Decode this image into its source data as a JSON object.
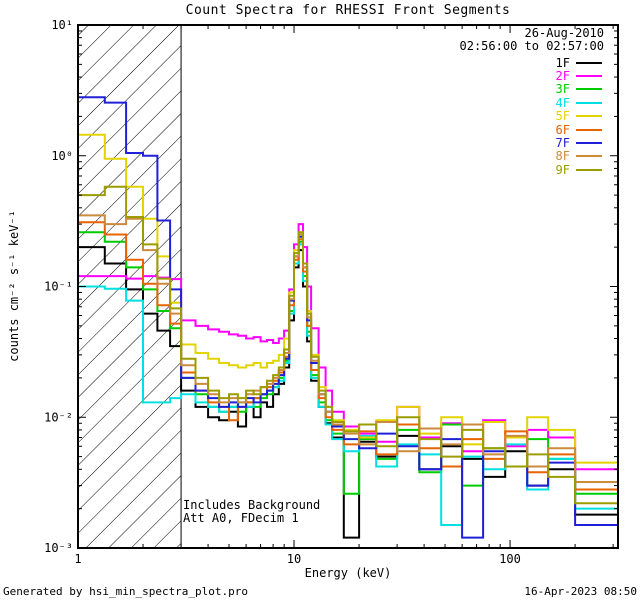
{
  "title": "Count Spectra for RHESSI Front Segments",
  "header": {
    "date": "26-Aug-2010",
    "time_range": "02:56:00 to 02:57:00"
  },
  "plot_notes": {
    "line1": "Includes Background",
    "line2": "Att A0, FDecim 1"
  },
  "footer": {
    "left": "Generated by hsi_min_spectra_plot.pro",
    "right": "16-Apr-2023 08:50"
  },
  "chart_data": {
    "type": "line",
    "mode": "histogram-step",
    "title": "Count Spectra for RHESSI Front Segments",
    "xlabel": "Energy (keV)",
    "ylabel": "counts cm⁻² s⁻¹ keV⁻¹",
    "xscale": "log",
    "yscale": "log",
    "xlim": [
      1,
      316
    ],
    "ylim": [
      0.001,
      10
    ],
    "grid": false,
    "legend_position": "top-right-inside",
    "xticks": [
      {
        "value": 1,
        "label": "1"
      },
      {
        "value": 10,
        "label": "10"
      },
      {
        "value": 100,
        "label": "100"
      }
    ],
    "yticks": [
      {
        "value": 0.001,
        "label": "10⁻³"
      },
      {
        "value": 0.01,
        "label": "10⁻²"
      },
      {
        "value": 0.1,
        "label": "10⁻¹"
      },
      {
        "value": 1,
        "label": "10⁰"
      },
      {
        "value": 10,
        "label": "10¹"
      }
    ],
    "hatch_region": {
      "from": 1,
      "to": 3
    },
    "energy_bin_edges": [
      1.0,
      1.33,
      1.67,
      2.0,
      2.33,
      2.67,
      3.0,
      3.5,
      4.0,
      4.5,
      5.0,
      5.5,
      6.0,
      6.5,
      7.0,
      7.5,
      8.0,
      8.5,
      9.0,
      9.5,
      10.0,
      10.5,
      11.0,
      11.5,
      12.0,
      13.0,
      14.0,
      15.0,
      17.0,
      20.0,
      24.0,
      30.0,
      38.0,
      48.0,
      60.0,
      75.0,
      95.0,
      120.0,
      150.0,
      200.0,
      316.0
    ],
    "series": [
      {
        "name": "1F",
        "color": "#000000",
        "values": [
          0.2,
          0.15,
          0.095,
          0.062,
          0.046,
          0.035,
          0.016,
          0.012,
          0.01,
          0.0095,
          0.011,
          0.0085,
          0.012,
          0.01,
          0.013,
          0.012,
          0.015,
          0.018,
          0.024,
          0.055,
          0.14,
          0.19,
          0.1,
          0.038,
          0.019,
          0.012,
          0.009,
          0.007,
          0.0012,
          0.0065,
          0.005,
          0.0072,
          0.004,
          0.006,
          0.0048,
          0.0035,
          0.0055,
          0.003,
          0.004,
          0.0018
        ]
      },
      {
        "name": "2F",
        "color": "#FF00FF",
        "values": [
          0.12,
          0.12,
          0.115,
          0.12,
          0.117,
          0.114,
          0.055,
          0.05,
          0.047,
          0.045,
          0.043,
          0.042,
          0.04,
          0.041,
          0.038,
          0.039,
          0.037,
          0.04,
          0.046,
          0.095,
          0.21,
          0.3,
          0.2,
          0.1,
          0.048,
          0.024,
          0.016,
          0.011,
          0.0085,
          0.0075,
          0.0065,
          0.012,
          0.007,
          0.009,
          0.0055,
          0.0095,
          0.006,
          0.008,
          0.007,
          0.004
        ]
      },
      {
        "name": "3F",
        "color": "#00CC00",
        "values": [
          0.26,
          0.22,
          0.14,
          0.095,
          0.065,
          0.048,
          0.02,
          0.015,
          0.012,
          0.011,
          0.012,
          0.011,
          0.013,
          0.012,
          0.014,
          0.015,
          0.017,
          0.02,
          0.027,
          0.065,
          0.15,
          0.22,
          0.12,
          0.045,
          0.021,
          0.013,
          0.0095,
          0.0075,
          0.0026,
          0.0068,
          0.0048,
          0.008,
          0.0038,
          0.0088,
          0.003,
          0.0058,
          0.0042,
          0.0068,
          0.0048,
          0.0026
        ]
      },
      {
        "name": "4F",
        "color": "#00E0E0",
        "values": [
          0.1,
          0.096,
          0.078,
          0.013,
          0.013,
          0.014,
          0.015,
          0.013,
          0.012,
          0.011,
          0.012,
          0.013,
          0.012,
          0.014,
          0.015,
          0.016,
          0.017,
          0.019,
          0.026,
          0.062,
          0.15,
          0.21,
          0.11,
          0.042,
          0.02,
          0.012,
          0.0088,
          0.0068,
          0.0055,
          0.0072,
          0.0042,
          0.0062,
          0.0052,
          0.0015,
          0.005,
          0.004,
          0.0062,
          0.0028,
          0.0048,
          0.002
        ]
      },
      {
        "name": "5F",
        "color": "#E3D400",
        "values": [
          1.45,
          0.95,
          0.58,
          0.33,
          0.17,
          0.075,
          0.036,
          0.031,
          0.028,
          0.026,
          0.025,
          0.024,
          0.025,
          0.026,
          0.024,
          0.026,
          0.027,
          0.03,
          0.04,
          0.09,
          0.19,
          0.26,
          0.15,
          0.065,
          0.03,
          0.017,
          0.012,
          0.0095,
          0.008,
          0.007,
          0.0095,
          0.012,
          0.0075,
          0.01,
          0.0062,
          0.0092,
          0.007,
          0.01,
          0.008,
          0.0045
        ]
      },
      {
        "name": "6F",
        "color": "#E86400",
        "values": [
          0.31,
          0.25,
          0.16,
          0.105,
          0.072,
          0.052,
          0.022,
          0.016,
          0.013,
          0.012,
          0.0095,
          0.012,
          0.013,
          0.014,
          0.015,
          0.017,
          0.019,
          0.022,
          0.029,
          0.072,
          0.16,
          0.23,
          0.13,
          0.05,
          0.023,
          0.014,
          0.01,
          0.008,
          0.0062,
          0.0078,
          0.0052,
          0.0088,
          0.0058,
          0.0042,
          0.0068,
          0.0048,
          0.0078,
          0.0038,
          0.0052,
          0.0028
        ]
      },
      {
        "name": "7F",
        "color": "#2020D8",
        "values": [
          2.8,
          2.55,
          1.05,
          1.0,
          0.32,
          0.095,
          0.02,
          0.016,
          0.014,
          0.012,
          0.013,
          0.012,
          0.014,
          0.013,
          0.015,
          0.016,
          0.018,
          0.021,
          0.028,
          0.078,
          0.17,
          0.24,
          0.14,
          0.055,
          0.026,
          0.015,
          0.011,
          0.0085,
          0.0068,
          0.0058,
          0.0075,
          0.006,
          0.004,
          0.0068,
          0.0012,
          0.0055,
          0.0042,
          0.003,
          0.0045,
          0.0015
        ]
      },
      {
        "name": "8F",
        "color": "#CC8A3C",
        "values": [
          0.35,
          0.3,
          0.33,
          0.19,
          0.105,
          0.062,
          0.025,
          0.018,
          0.015,
          0.013,
          0.014,
          0.013,
          0.015,
          0.016,
          0.017,
          0.018,
          0.02,
          0.023,
          0.031,
          0.08,
          0.17,
          0.25,
          0.14,
          0.058,
          0.027,
          0.015,
          0.011,
          0.0088,
          0.0075,
          0.0062,
          0.0092,
          0.0055,
          0.0082,
          0.0062,
          0.0088,
          0.0052,
          0.0072,
          0.0042,
          0.0058,
          0.0032
        ]
      },
      {
        "name": "9F",
        "color": "#9C9C00",
        "values": [
          0.5,
          0.58,
          0.34,
          0.21,
          0.115,
          0.068,
          0.028,
          0.02,
          0.016,
          0.014,
          0.015,
          0.014,
          0.016,
          0.015,
          0.017,
          0.019,
          0.021,
          0.024,
          0.033,
          0.085,
          0.18,
          0.26,
          0.15,
          0.062,
          0.029,
          0.016,
          0.012,
          0.0092,
          0.0078,
          0.0088,
          0.006,
          0.01,
          0.0068,
          0.005,
          0.008,
          0.0058,
          0.0042,
          0.0052,
          0.0035,
          0.0022
        ]
      }
    ]
  }
}
